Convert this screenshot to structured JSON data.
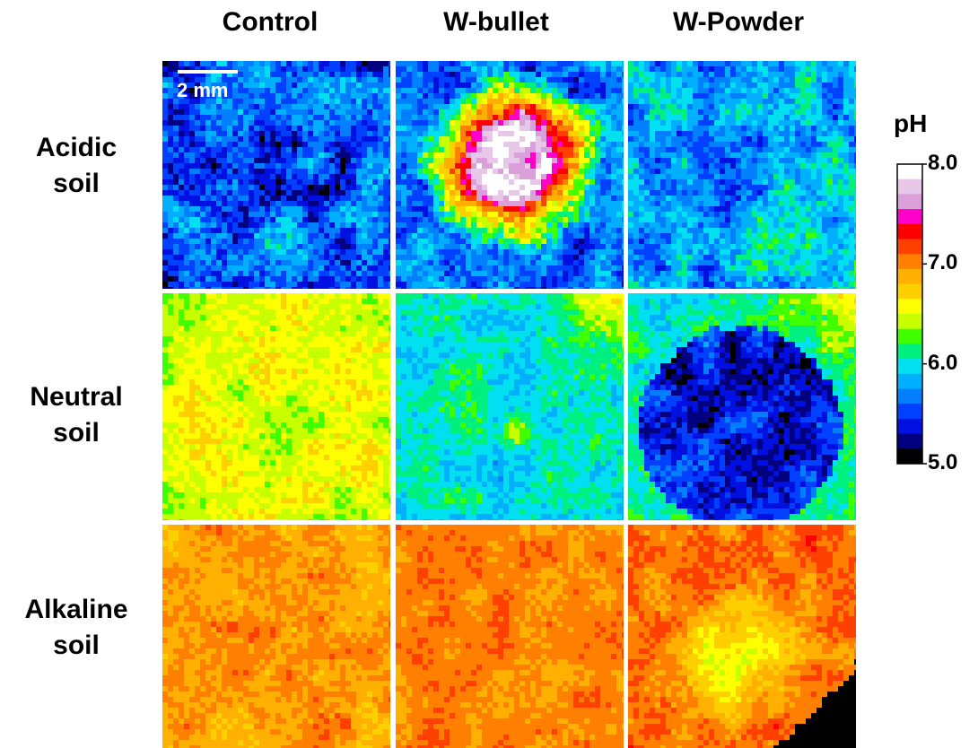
{
  "figure": {
    "column_headers": [
      "Control",
      "W-bullet",
      "W-Powder"
    ],
    "row_labels": [
      "Acidic soil",
      "Neutral soil",
      "Alkaline soil"
    ],
    "scale_bar": "2 mm",
    "colorbar": {
      "title": "pH",
      "lim": [
        5,
        8
      ],
      "ticks": [
        {
          "value": 8,
          "label": "8.0"
        },
        {
          "value": 7,
          "label": "7.0"
        },
        {
          "value": 6,
          "label": "6.0"
        },
        {
          "value": 5,
          "label": "5.0"
        }
      ],
      "colors": [
        "#ffffff",
        "#e8c8e8",
        "#d9a0d9",
        "#ff00c8",
        "#ff0000",
        "#ff4000",
        "#ff8000",
        "#ffb000",
        "#ffd000",
        "#ffff00",
        "#c8ff00",
        "#40ff00",
        "#00f080",
        "#00e0f0",
        "#00b0ff",
        "#0080ff",
        "#0040ff",
        "#0010e0",
        "#000080",
        "#000000"
      ]
    }
  }
}
